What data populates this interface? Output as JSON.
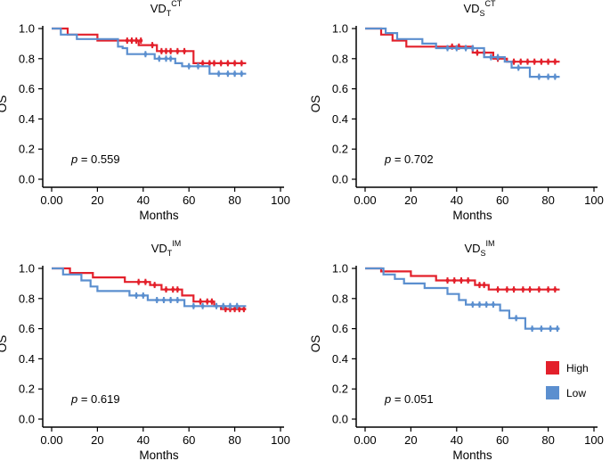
{
  "legend": {
    "position": "lower-right",
    "entries": [
      {
        "label": "High",
        "color": "#e3202b"
      },
      {
        "label": "Low",
        "color": "#5b8fcf"
      }
    ]
  },
  "chart_data": [
    {
      "type": "line",
      "subtype": "kaplan-meier",
      "title": {
        "main": "VD",
        "sub": "T",
        "sup": "CT"
      },
      "xlabel": "Months",
      "ylabel": "OS",
      "xlim": [
        0,
        100
      ],
      "ylim": [
        0,
        1.0
      ],
      "xticks": [
        "0.00",
        "20",
        "40",
        "60",
        "80",
        "100"
      ],
      "yticks": [
        "0.0",
        "0.2",
        "0.4",
        "0.6",
        "0.8",
        "1.0"
      ],
      "pvalue_label": "p",
      "pvalue_text": "= 0.559",
      "series": [
        {
          "name": "High",
          "color": "#e3202b",
          "steps": [
            [
              0,
              1.0
            ],
            [
              7,
              0.96
            ],
            [
              20,
              0.92
            ],
            [
              38,
              0.89
            ],
            [
              46,
              0.85
            ],
            [
              62,
              0.77
            ],
            [
              85,
              0.77
            ]
          ],
          "censors": [
            [
              33,
              0.92
            ],
            [
              35,
              0.92
            ],
            [
              37,
              0.92
            ],
            [
              39,
              0.92
            ],
            [
              44,
              0.89
            ],
            [
              48,
              0.85
            ],
            [
              50,
              0.85
            ],
            [
              52,
              0.85
            ],
            [
              55,
              0.85
            ],
            [
              58,
              0.85
            ],
            [
              66,
              0.77
            ],
            [
              69,
              0.77
            ],
            [
              71,
              0.77
            ],
            [
              74,
              0.77
            ],
            [
              77,
              0.77
            ],
            [
              80,
              0.77
            ],
            [
              83,
              0.77
            ]
          ]
        },
        {
          "name": "Low",
          "color": "#5b8fcf",
          "steps": [
            [
              0,
              1.0
            ],
            [
              4,
              0.96
            ],
            [
              11,
              0.93
            ],
            [
              29,
              0.88
            ],
            [
              31,
              0.87
            ],
            [
              33,
              0.83
            ],
            [
              45,
              0.8
            ],
            [
              54,
              0.77
            ],
            [
              57,
              0.75
            ],
            [
              69,
              0.7
            ],
            [
              85,
              0.7
            ]
          ],
          "censors": [
            [
              41,
              0.83
            ],
            [
              47,
              0.8
            ],
            [
              50,
              0.8
            ],
            [
              52,
              0.8
            ],
            [
              60,
              0.75
            ],
            [
              64,
              0.75
            ],
            [
              73,
              0.7
            ],
            [
              77,
              0.7
            ],
            [
              80,
              0.7
            ],
            [
              83,
              0.7
            ]
          ]
        }
      ]
    },
    {
      "type": "line",
      "subtype": "kaplan-meier",
      "title": {
        "main": "VD",
        "sub": "S",
        "sup": "CT"
      },
      "xlabel": "Months",
      "ylabel": "OS",
      "xlim": [
        0,
        100
      ],
      "ylim": [
        0,
        1.0
      ],
      "xticks": [
        "0.00",
        "20",
        "40",
        "60",
        "80",
        "100"
      ],
      "yticks": [
        "0.0",
        "0.2",
        "0.4",
        "0.6",
        "0.8",
        "1.0"
      ],
      "pvalue_label": "p",
      "pvalue_text": "= 0.702",
      "series": [
        {
          "name": "High",
          "color": "#e3202b",
          "steps": [
            [
              0,
              1.0
            ],
            [
              7,
              0.96
            ],
            [
              12,
              0.92
            ],
            [
              18,
              0.88
            ],
            [
              47,
              0.84
            ],
            [
              56,
              0.8
            ],
            [
              62,
              0.78
            ],
            [
              85,
              0.78
            ]
          ],
          "censors": [
            [
              38,
              0.88
            ],
            [
              41,
              0.88
            ],
            [
              49,
              0.84
            ],
            [
              52,
              0.84
            ],
            [
              58,
              0.8
            ],
            [
              65,
              0.78
            ],
            [
              68,
              0.78
            ],
            [
              71,
              0.78
            ],
            [
              74,
              0.78
            ],
            [
              77,
              0.78
            ],
            [
              80,
              0.78
            ],
            [
              83,
              0.78
            ]
          ]
        },
        {
          "name": "Low",
          "color": "#5b8fcf",
          "steps": [
            [
              0,
              1.0
            ],
            [
              9,
              0.97
            ],
            [
              14,
              0.93
            ],
            [
              25,
              0.9
            ],
            [
              31,
              0.87
            ],
            [
              52,
              0.81
            ],
            [
              61,
              0.78
            ],
            [
              64,
              0.74
            ],
            [
              72,
              0.68
            ],
            [
              85,
              0.68
            ]
          ],
          "censors": [
            [
              36,
              0.87
            ],
            [
              40,
              0.87
            ],
            [
              44,
              0.87
            ],
            [
              47,
              0.87
            ],
            [
              55,
              0.81
            ],
            [
              58,
              0.81
            ],
            [
              67,
              0.74
            ],
            [
              76,
              0.68
            ],
            [
              80,
              0.68
            ],
            [
              83,
              0.68
            ]
          ]
        }
      ]
    },
    {
      "type": "line",
      "subtype": "kaplan-meier",
      "title": {
        "main": "VD",
        "sub": "T",
        "sup": "IM"
      },
      "xlabel": "Months",
      "ylabel": "OS",
      "xlim": [
        0,
        100
      ],
      "ylim": [
        0,
        1.0
      ],
      "xticks": [
        "0.00",
        "20",
        "40",
        "60",
        "80",
        "100"
      ],
      "yticks": [
        "0.0",
        "0.2",
        "0.4",
        "0.6",
        "0.8",
        "1.0"
      ],
      "pvalue_label": "p",
      "pvalue_text": "= 0.619",
      "series": [
        {
          "name": "High",
          "color": "#e3202b",
          "steps": [
            [
              0,
              1.0
            ],
            [
              8,
              0.97
            ],
            [
              18,
              0.94
            ],
            [
              32,
              0.91
            ],
            [
              43,
              0.89
            ],
            [
              48,
              0.86
            ],
            [
              57,
              0.82
            ],
            [
              62,
              0.78
            ],
            [
              71,
              0.75
            ],
            [
              74,
              0.73
            ],
            [
              85,
              0.73
            ]
          ],
          "censors": [
            [
              38,
              0.91
            ],
            [
              41,
              0.91
            ],
            [
              45,
              0.89
            ],
            [
              50,
              0.86
            ],
            [
              53,
              0.86
            ],
            [
              55,
              0.86
            ],
            [
              65,
              0.78
            ],
            [
              68,
              0.78
            ],
            [
              70,
              0.78
            ],
            [
              76,
              0.73
            ],
            [
              78,
              0.73
            ],
            [
              80,
              0.73
            ],
            [
              82,
              0.73
            ],
            [
              84,
              0.73
            ]
          ]
        },
        {
          "name": "Low",
          "color": "#5b8fcf",
          "steps": [
            [
              0,
              1.0
            ],
            [
              5,
              0.96
            ],
            [
              13,
              0.92
            ],
            [
              17,
              0.88
            ],
            [
              20,
              0.85
            ],
            [
              34,
              0.82
            ],
            [
              42,
              0.79
            ],
            [
              58,
              0.75
            ],
            [
              85,
              0.75
            ]
          ],
          "censors": [
            [
              37,
              0.82
            ],
            [
              40,
              0.82
            ],
            [
              46,
              0.79
            ],
            [
              49,
              0.79
            ],
            [
              52,
              0.79
            ],
            [
              55,
              0.79
            ],
            [
              62,
              0.75
            ],
            [
              66,
              0.75
            ],
            [
              72,
              0.75
            ],
            [
              75,
              0.75
            ],
            [
              78,
              0.75
            ],
            [
              81,
              0.75
            ]
          ]
        }
      ]
    },
    {
      "type": "line",
      "subtype": "kaplan-meier",
      "title": {
        "main": "VD",
        "sub": "S",
        "sup": "IM"
      },
      "xlabel": "Months",
      "ylabel": "OS",
      "xlim": [
        0,
        100
      ],
      "ylim": [
        0,
        1.0
      ],
      "xticks": [
        "0.00",
        "20",
        "40",
        "60",
        "80",
        "100"
      ],
      "yticks": [
        "0.0",
        "0.2",
        "0.4",
        "0.6",
        "0.8",
        "1.0"
      ],
      "pvalue_label": "p",
      "pvalue_text": "= 0.051",
      "series": [
        {
          "name": "High",
          "color": "#e3202b",
          "steps": [
            [
              0,
              1.0
            ],
            [
              7,
              0.98
            ],
            [
              20,
              0.95
            ],
            [
              31,
              0.92
            ],
            [
              48,
              0.89
            ],
            [
              54,
              0.86
            ],
            [
              85,
              0.86
            ]
          ],
          "censors": [
            [
              36,
              0.92
            ],
            [
              39,
              0.92
            ],
            [
              42,
              0.92
            ],
            [
              45,
              0.92
            ],
            [
              50,
              0.89
            ],
            [
              52,
              0.89
            ],
            [
              58,
              0.86
            ],
            [
              62,
              0.86
            ],
            [
              65,
              0.86
            ],
            [
              69,
              0.86
            ],
            [
              72,
              0.86
            ],
            [
              76,
              0.86
            ],
            [
              80,
              0.86
            ],
            [
              83,
              0.86
            ]
          ]
        },
        {
          "name": "Low",
          "color": "#5b8fcf",
          "steps": [
            [
              0,
              1.0
            ],
            [
              8,
              0.96
            ],
            [
              13,
              0.93
            ],
            [
              17,
              0.9
            ],
            [
              26,
              0.87
            ],
            [
              36,
              0.83
            ],
            [
              41,
              0.79
            ],
            [
              44,
              0.76
            ],
            [
              59,
              0.72
            ],
            [
              63,
              0.67
            ],
            [
              70,
              0.6
            ],
            [
              85,
              0.6
            ]
          ],
          "censors": [
            [
              47,
              0.76
            ],
            [
              50,
              0.76
            ],
            [
              53,
              0.76
            ],
            [
              56,
              0.76
            ],
            [
              66,
              0.67
            ],
            [
              73,
              0.6
            ],
            [
              77,
              0.6
            ],
            [
              81,
              0.6
            ],
            [
              84,
              0.6
            ]
          ]
        }
      ]
    }
  ]
}
